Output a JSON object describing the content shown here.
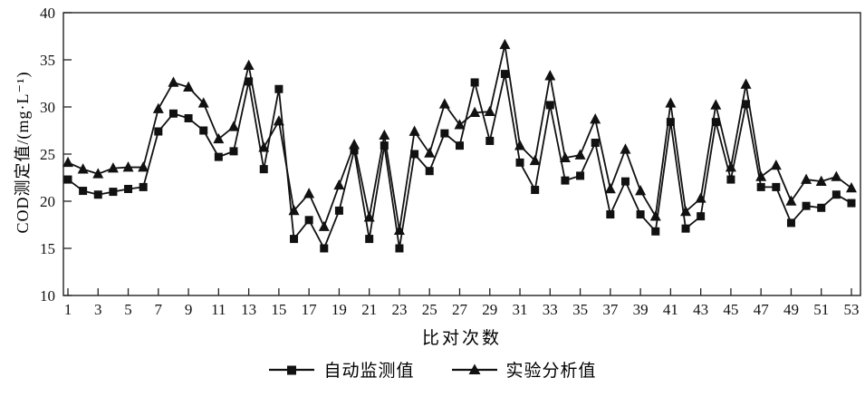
{
  "chart_data": {
    "type": "line",
    "title": "",
    "xlabel": "比对次数",
    "ylabel": "COD测定值/(mg·L⁻¹)",
    "x": [
      1,
      2,
      3,
      4,
      5,
      6,
      7,
      8,
      9,
      10,
      11,
      12,
      13,
      14,
      15,
      16,
      17,
      18,
      19,
      20,
      21,
      22,
      23,
      24,
      25,
      26,
      27,
      28,
      29,
      30,
      31,
      32,
      33,
      34,
      35,
      36,
      37,
      38,
      39,
      40,
      41,
      42,
      43,
      44,
      45,
      46,
      47,
      48,
      49,
      50,
      51,
      52,
      53
    ],
    "xticks": [
      1,
      3,
      5,
      7,
      9,
      11,
      13,
      15,
      17,
      19,
      21,
      23,
      25,
      27,
      29,
      31,
      33,
      35,
      37,
      39,
      41,
      43,
      45,
      47,
      49,
      51,
      53
    ],
    "ylim": [
      10,
      40
    ],
    "yticks": [
      10,
      15,
      20,
      25,
      30,
      35,
      40
    ],
    "grid": false,
    "legend_position": "bottom",
    "line_color": "#111111",
    "series": [
      {
        "name": "自动监测值",
        "marker": "square",
        "color": "#111111",
        "values": [
          22.3,
          21.1,
          20.7,
          21.0,
          21.3,
          21.5,
          27.4,
          29.3,
          28.8,
          27.5,
          24.7,
          25.3,
          32.7,
          23.4,
          31.9,
          16.0,
          18.0,
          15.0,
          19.0,
          25.4,
          16.0,
          25.9,
          15.0,
          25.0,
          23.2,
          27.2,
          25.9,
          32.6,
          26.4,
          33.5,
          24.1,
          21.2,
          30.2,
          22.2,
          22.7,
          26.2,
          18.6,
          22.1,
          18.6,
          16.8,
          28.4,
          17.1,
          18.4,
          28.4,
          22.3,
          30.3,
          21.5,
          21.5,
          17.7,
          19.5,
          19.3,
          20.7,
          19.8
        ]
      },
      {
        "name": "实验分析值",
        "marker": "triangle",
        "color": "#111111",
        "values": [
          24.1,
          23.4,
          22.9,
          23.5,
          23.6,
          23.6,
          29.8,
          32.6,
          32.1,
          30.4,
          26.6,
          27.9,
          34.4,
          25.7,
          28.5,
          19.0,
          20.8,
          17.3,
          21.7,
          26.0,
          18.3,
          27.0,
          16.9,
          27.4,
          25.1,
          30.3,
          28.1,
          29.4,
          29.5,
          36.6,
          25.9,
          24.3,
          33.3,
          24.6,
          24.9,
          28.7,
          21.3,
          25.5,
          21.1,
          18.4,
          30.4,
          18.9,
          20.3,
          30.2,
          23.6,
          32.4,
          22.6,
          23.8,
          20.0,
          22.3,
          22.1,
          22.6,
          21.4
        ]
      }
    ]
  }
}
